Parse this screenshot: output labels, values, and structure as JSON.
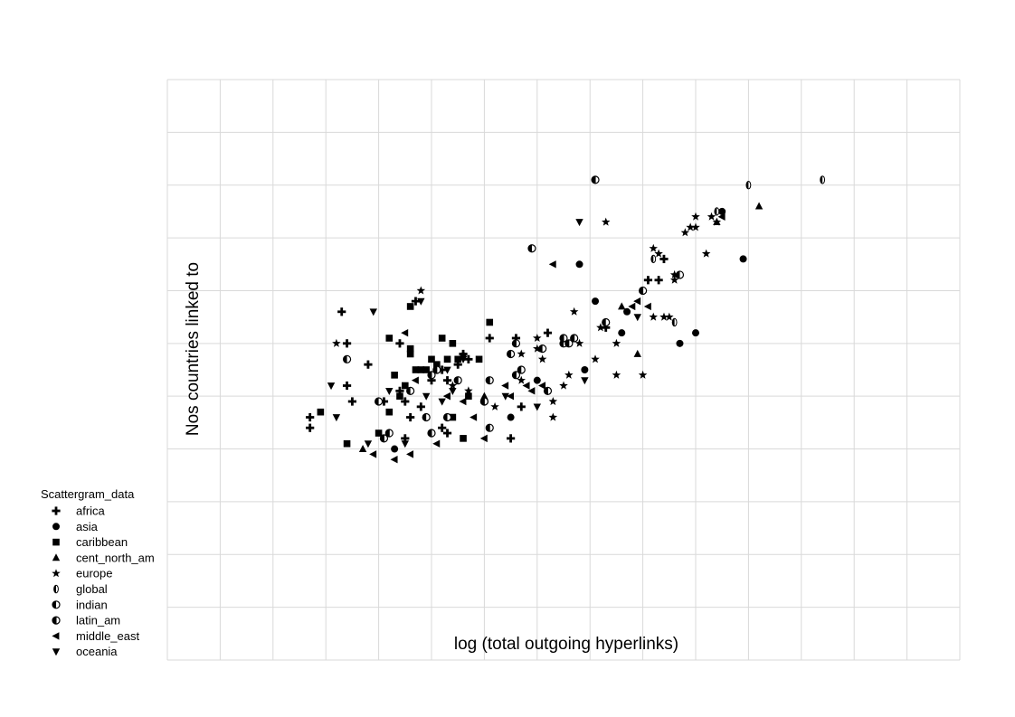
{
  "chart_data": {
    "type": "scatter",
    "title": "",
    "xlabel": "log (total outgoing hyperlinks)",
    "ylabel": "Nos countries linked to",
    "xlim": [
      0,
      15
    ],
    "ylim": [
      0,
      11
    ],
    "grid": true,
    "legend_title": "Scattergram_data",
    "legend_position": "bottom-left",
    "series": [
      {
        "name": "africa",
        "marker": "plus",
        "points": [
          [
            2.7,
            4.6
          ],
          [
            2.7,
            4.4
          ],
          [
            3.3,
            6.6
          ],
          [
            3.4,
            6
          ],
          [
            3.4,
            5.2
          ],
          [
            3.5,
            4.9
          ],
          [
            3.8,
            5.6
          ],
          [
            4.1,
            4.9
          ],
          [
            4.4,
            5.1
          ],
          [
            4.5,
            4.9
          ],
          [
            4.5,
            4.2
          ],
          [
            4.6,
            4.6
          ],
          [
            4.7,
            6.8
          ],
          [
            4.8,
            4.8
          ],
          [
            5.2,
            4.4
          ],
          [
            5.3,
            5.3
          ],
          [
            5.3,
            4.3
          ],
          [
            5.5,
            5.6
          ],
          [
            5.7,
            5.7
          ],
          [
            6.1,
            6.1
          ],
          [
            6.6,
            6.1
          ],
          [
            6.7,
            4.8
          ],
          [
            6.5,
            4.2
          ],
          [
            7.2,
            6.2
          ],
          [
            8.3,
            6.3
          ],
          [
            9.1,
            7.2
          ],
          [
            9.3,
            7.2
          ],
          [
            9.4,
            7.6
          ],
          [
            4.4,
            6.0
          ],
          [
            5.2,
            5.5
          ],
          [
            5.6,
            5.8
          ],
          [
            5.0,
            5.3
          ]
        ]
      },
      {
        "name": "asia",
        "marker": "circle",
        "points": [
          [
            4.3,
            4
          ],
          [
            7.8,
            7.5
          ],
          [
            7.9,
            5.5
          ],
          [
            8.1,
            6.8
          ],
          [
            8.6,
            6.2
          ],
          [
            8.7,
            6.6
          ],
          [
            9.7,
            6.0
          ],
          [
            10.0,
            6.2
          ],
          [
            10.5,
            8.5
          ],
          [
            10.9,
            7.6
          ],
          [
            8.3,
            6.4
          ],
          [
            6.5,
            4.6
          ],
          [
            7.0,
            5.3
          ]
        ]
      },
      {
        "name": "caribbean",
        "marker": "square",
        "points": [
          [
            2.9,
            4.7
          ],
          [
            3.4,
            4.1
          ],
          [
            4.0,
            4.3
          ],
          [
            4.2,
            4.7
          ],
          [
            4.2,
            6.1
          ],
          [
            4.3,
            5.4
          ],
          [
            4.4,
            5.0
          ],
          [
            4.5,
            5.2
          ],
          [
            4.6,
            6.7
          ],
          [
            4.6,
            5.8
          ],
          [
            4.7,
            5.5
          ],
          [
            4.8,
            5.5
          ],
          [
            4.9,
            5.5
          ],
          [
            5.0,
            5.7
          ],
          [
            5.1,
            5.6
          ],
          [
            5.2,
            6.1
          ],
          [
            5.3,
            5.7
          ],
          [
            5.4,
            4.6
          ],
          [
            5.5,
            5.7
          ],
          [
            5.6,
            4.2
          ],
          [
            5.7,
            5.0
          ],
          [
            5.9,
            5.7
          ],
          [
            6.1,
            6.4
          ],
          [
            4.6,
            5.9
          ],
          [
            5.4,
            6
          ]
        ]
      },
      {
        "name": "cent_north_am",
        "marker": "triangle-up",
        "points": [
          [
            3.7,
            4.0
          ],
          [
            8.6,
            6.7
          ],
          [
            8.9,
            5.8
          ],
          [
            10.4,
            8.3
          ],
          [
            11.2,
            8.6
          ],
          [
            5.6,
            5.8
          ],
          [
            5.1,
            5.5
          ],
          [
            6.0,
            5.0
          ]
        ]
      },
      {
        "name": "europe",
        "marker": "star",
        "points": [
          [
            3.2,
            6
          ],
          [
            4.8,
            7
          ],
          [
            5.4,
            5.2
          ],
          [
            5.7,
            5.1
          ],
          [
            6.2,
            4.8
          ],
          [
            6.7,
            5.3
          ],
          [
            7.0,
            6.1
          ],
          [
            7.0,
            5.9
          ],
          [
            7.1,
            5.7
          ],
          [
            7.3,
            4.6
          ],
          [
            7.5,
            5.2
          ],
          [
            7.6,
            5.4
          ],
          [
            7.8,
            6.0
          ],
          [
            8.1,
            5.7
          ],
          [
            8.2,
            6.3
          ],
          [
            8.3,
            8.3
          ],
          [
            8.5,
            6.0
          ],
          [
            8.5,
            5.4
          ],
          [
            9.0,
            5.4
          ],
          [
            9.2,
            6.5
          ],
          [
            9.2,
            7.8
          ],
          [
            9.3,
            7.7
          ],
          [
            9.4,
            6.5
          ],
          [
            9.5,
            6.5
          ],
          [
            9.6,
            7.3
          ],
          [
            9.6,
            7.2
          ],
          [
            9.8,
            8.1
          ],
          [
            9.9,
            8.2
          ],
          [
            10.0,
            8.2
          ],
          [
            10.2,
            7.7
          ],
          [
            10.3,
            8.4
          ],
          [
            10.4,
            8.3
          ],
          [
            10.0,
            8.4
          ],
          [
            7.3,
            4.9
          ],
          [
            7.7,
            6.6
          ],
          [
            6.7,
            5.8
          ]
        ]
      },
      {
        "name": "global",
        "marker": "half-left",
        "points": [
          [
            9.2,
            7.6
          ],
          [
            9.6,
            6.4
          ],
          [
            10.4,
            8.5
          ],
          [
            11.0,
            9.0
          ],
          [
            12.4,
            9.1
          ]
        ]
      },
      {
        "name": "indian",
        "marker": "half-bottom",
        "points": [
          [
            3.4,
            5.7
          ],
          [
            4.0,
            4.9
          ],
          [
            6.9,
            7.8
          ],
          [
            9.7,
            7.3
          ],
          [
            5.3,
            4.6
          ],
          [
            6.0,
            4.9
          ],
          [
            7.1,
            5.9
          ],
          [
            7.5,
            6.0
          ],
          [
            8.3,
            6.4
          ],
          [
            6.7,
            5.5
          ],
          [
            4.9,
            4.6
          ],
          [
            4.6,
            5.1
          ]
        ]
      },
      {
        "name": "latin_am",
        "marker": "half-left-light",
        "points": [
          [
            4.1,
            4.2
          ],
          [
            4.2,
            4.3
          ],
          [
            5.0,
            4.3
          ],
          [
            5.1,
            5.5
          ],
          [
            5.5,
            5.3
          ],
          [
            6.1,
            5.3
          ],
          [
            6.0,
            4.9
          ],
          [
            6.1,
            4.4
          ],
          [
            6.5,
            5.8
          ],
          [
            6.6,
            6.0
          ],
          [
            7.2,
            5.1
          ],
          [
            7.5,
            6.1
          ],
          [
            7.6,
            6.0
          ],
          [
            7.7,
            6.1
          ],
          [
            8.1,
            9.1
          ],
          [
            9.0,
            7.0
          ],
          [
            5.0,
            5.4
          ],
          [
            6.6,
            5.4
          ]
        ]
      },
      {
        "name": "middle_east",
        "marker": "triangle-left",
        "points": [
          [
            3.9,
            3.9
          ],
          [
            4.3,
            3.8
          ],
          [
            4.6,
            3.9
          ],
          [
            5.1,
            4.1
          ],
          [
            5.3,
            5.0
          ],
          [
            5.6,
            4.9
          ],
          [
            5.8,
            4.6
          ],
          [
            6.0,
            4.2
          ],
          [
            6.4,
            5.2
          ],
          [
            6.5,
            5.0
          ],
          [
            6.8,
            5.2
          ],
          [
            6.9,
            5.1
          ],
          [
            7.1,
            5.2
          ],
          [
            7.3,
            7.5
          ],
          [
            8.8,
            6.7
          ],
          [
            8.9,
            6.8
          ],
          [
            9.1,
            6.7
          ],
          [
            10.5,
            8.4
          ],
          [
            4.5,
            6.2
          ],
          [
            4.7,
            5.3
          ],
          [
            5.3,
            5.0
          ]
        ]
      },
      {
        "name": "oceania",
        "marker": "triangle-down",
        "points": [
          [
            3.1,
            5.2
          ],
          [
            3.2,
            4.6
          ],
          [
            3.8,
            4.1
          ],
          [
            3.9,
            6.6
          ],
          [
            4.2,
            5.1
          ],
          [
            4.5,
            4.1
          ],
          [
            4.9,
            5.0
          ],
          [
            5.2,
            4.9
          ],
          [
            5.3,
            5.5
          ],
          [
            5.4,
            5.1
          ],
          [
            7.0,
            4.8
          ],
          [
            7.8,
            8.3
          ],
          [
            7.9,
            5.3
          ],
          [
            8.9,
            6.5
          ],
          [
            4.8,
            6.8
          ],
          [
            5.6,
            5.7
          ],
          [
            6.4,
            5.0
          ]
        ]
      }
    ]
  }
}
